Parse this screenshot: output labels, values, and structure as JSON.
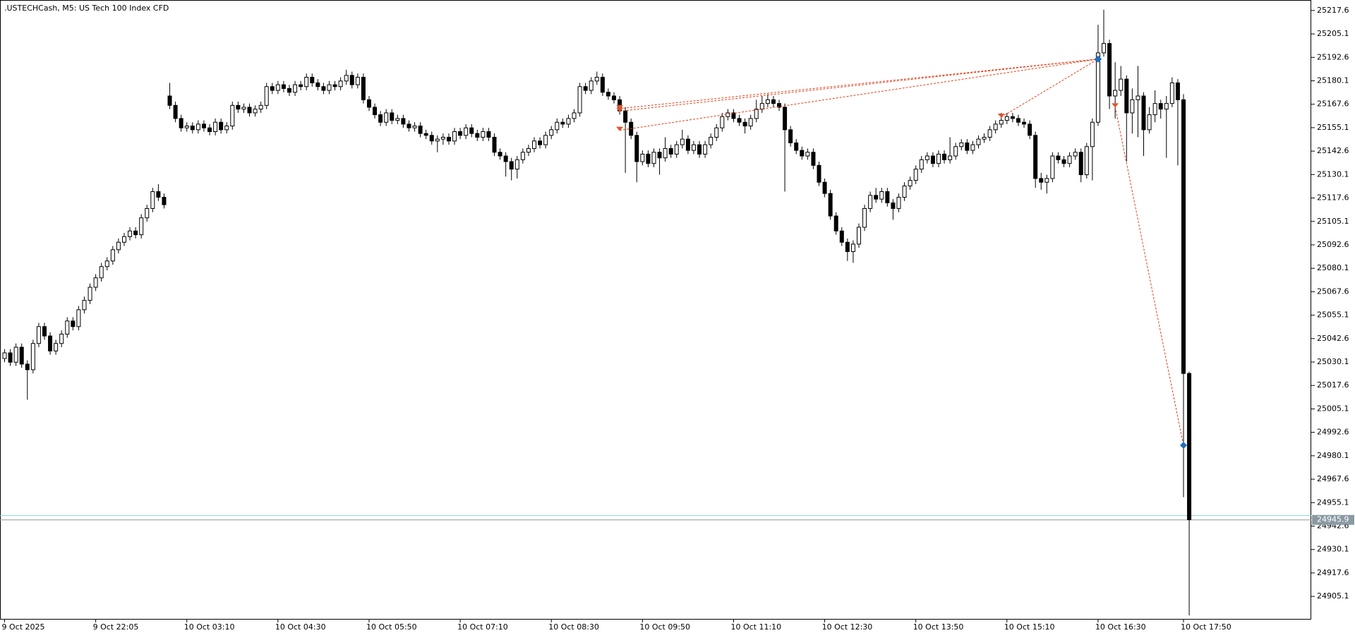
{
  "chart_data": {
    "type": "candlestick",
    "title": ".USTECHCash, M5:  US Tech 100 Index CFD",
    "ylim": [
      24893.1,
      25223.2
    ],
    "yticks": [
      {
        "value": 25217.6,
        "label": "25217.6"
      },
      25205.1,
      25192.6,
      25180.1,
      25167.6,
      25155.1,
      25142.6,
      25130.1,
      25117.6,
      25105.1,
      25092.6,
      25080.1,
      25067.6,
      25055.1,
      25042.6,
      25030.1,
      25017.6,
      25005.1,
      24992.6,
      24980.1,
      24967.6,
      24955.1,
      24942.6,
      24930.1,
      24917.6,
      24905.1
    ],
    "xticks": [
      {
        "value": 0,
        "label": "9 Oct 2025"
      },
      {
        "value": 16,
        "label": "9 Oct 22:05"
      },
      {
        "value": 32,
        "label": "10 Oct 03:10"
      },
      {
        "value": 48,
        "label": "10 Oct 04:30"
      },
      {
        "value": 64,
        "label": "10 Oct 05:50"
      },
      {
        "value": 80,
        "label": "10 Oct 07:10"
      },
      {
        "value": 96,
        "label": "10 Oct 08:30"
      },
      {
        "value": 112,
        "label": "10 Oct 09:50"
      },
      {
        "value": 128,
        "label": "10 Oct 11:10"
      },
      {
        "value": 144,
        "label": "10 Oct 12:30"
      },
      {
        "value": 160,
        "label": "10 Oct 13:50"
      },
      {
        "value": 176,
        "label": "10 Oct 15:10"
      },
      {
        "value": 192,
        "label": "10 Oct 16:30"
      },
      {
        "value": 207,
        "label": "10 Oct 17:50"
      }
    ],
    "bid": 24945.9,
    "ask": 24948.2,
    "bull_color": "#ffffff",
    "bear_color": "#000000",
    "bid_color": "#8a9aa3",
    "ask_color": "#7fd8d8",
    "sell_color": "#e0542a",
    "buy_color": "#1f6fc0",
    "trade_line_color": "#e0401a",
    "trades": [
      {
        "open_index": 108,
        "open_price": 25165.3,
        "close_index": 192,
        "close_price": 25191.7
      },
      {
        "open_index": 108,
        "open_price": 25163.9,
        "close_index": 192,
        "close_price": 25191.7
      },
      {
        "open_index": 108,
        "open_price": 25153.7,
        "close_index": 192,
        "close_price": 25191.7
      },
      {
        "open_index": 175,
        "open_price": 25160.7,
        "close_index": 192,
        "close_price": 25191.7
      },
      {
        "open_index": 195,
        "open_price": 25166.2,
        "close_index": 207,
        "close_price": 24985.7
      }
    ],
    "candles": [
      [
        25032,
        25037,
        25030,
        25035
      ],
      [
        25035,
        25037,
        25028,
        25030
      ],
      [
        25030,
        25040,
        25028,
        25038
      ],
      [
        25038,
        25040,
        25027,
        25029
      ],
      [
        25029,
        25031,
        25010,
        25026
      ],
      [
        25026,
        25042,
        25024,
        25040
      ],
      [
        25040,
        25051,
        25038,
        25049
      ],
      [
        25049,
        25051,
        25042,
        25044
      ],
      [
        25044,
        25046,
        25034,
        25036
      ],
      [
        25036,
        25042,
        25034,
        25040
      ],
      [
        25040,
        25047,
        25038,
        25045
      ],
      [
        25045,
        25054,
        25043,
        25052
      ],
      [
        25052,
        25054,
        25047,
        25049
      ],
      [
        25049,
        25060,
        25047,
        25058
      ],
      [
        25058,
        25065,
        25056,
        25063
      ],
      [
        25063,
        25072,
        25061,
        25070
      ],
      [
        25070,
        25077,
        25068,
        25075
      ],
      [
        25075,
        25083,
        25073,
        25081
      ],
      [
        25081,
        25086,
        25079,
        25084
      ],
      [
        25084,
        25092,
        25082,
        25090
      ],
      [
        25090,
        25096,
        25088,
        25094
      ],
      [
        25094,
        25099,
        25092,
        25097
      ],
      [
        25097,
        25102,
        25095,
        25100
      ],
      [
        25100,
        25102,
        25096,
        25098
      ],
      [
        25098,
        25109,
        25096,
        25107
      ],
      [
        25107,
        25114,
        25105,
        25112
      ],
      [
        25112,
        25123,
        25110,
        25121
      ],
      [
        25121,
        25125,
        25116,
        25118
      ],
      [
        25118,
        25120,
        25112,
        25114
      ],
      [
        25172,
        25179,
        25165,
        25167
      ],
      [
        25167,
        25169,
        25158,
        25160
      ],
      [
        25160,
        25162,
        25153,
        25155
      ],
      [
        25155,
        25158,
        25153,
        25156
      ],
      [
        25156,
        25158,
        25152,
        25154
      ],
      [
        25154,
        25159,
        25152,
        25157
      ],
      [
        25157,
        25159,
        25153,
        25155
      ],
      [
        25155,
        25157,
        25151,
        25153
      ],
      [
        25153,
        25160,
        25151,
        25158
      ],
      [
        25158,
        25160,
        25152,
        25154
      ],
      [
        25154,
        25158,
        25152,
        25156
      ],
      [
        25156,
        25169,
        25154,
        25167
      ],
      [
        25167,
        25169,
        25163,
        25165
      ],
      [
        25165,
        25168,
        25163,
        25166
      ],
      [
        25166,
        25168,
        25161,
        25163
      ],
      [
        25163,
        25167,
        25161,
        25165
      ],
      [
        25165,
        25169,
        25163,
        25167
      ],
      [
        25167,
        25179,
        25165,
        25177
      ],
      [
        25177,
        25179,
        25173,
        25175
      ],
      [
        25175,
        25180,
        25173,
        25178
      ],
      [
        25178,
        25180,
        25174,
        25176
      ],
      [
        25176,
        25178,
        25172,
        25174
      ],
      [
        25174,
        25180,
        25172,
        25178
      ],
      [
        25178,
        25180,
        25175,
        25177
      ],
      [
        25177,
        25184,
        25175,
        25182
      ],
      [
        25182,
        25184,
        25177,
        25179
      ],
      [
        25179,
        25181,
        25175,
        25177
      ],
      [
        25177,
        25179,
        25173,
        25175
      ],
      [
        25175,
        25180,
        25173,
        25178
      ],
      [
        25178,
        25180,
        25175,
        25177
      ],
      [
        25177,
        25182,
        25175,
        25180
      ],
      [
        25180,
        25186,
        25178,
        25183
      ],
      [
        25183,
        25185,
        25176,
        25178
      ],
      [
        25178,
        25184,
        25176,
        25182
      ],
      [
        25182,
        25184,
        25168,
        25170
      ],
      [
        25170,
        25172,
        25164,
        25166
      ],
      [
        25166,
        25168,
        25160,
        25162
      ],
      [
        25162,
        25164,
        25156,
        25158
      ],
      [
        25158,
        25165,
        25156,
        25163
      ],
      [
        25163,
        25165,
        25157,
        25159
      ],
      [
        25159,
        25162,
        25157,
        25160
      ],
      [
        25160,
        25162,
        25155,
        25157
      ],
      [
        25157,
        25159,
        25153,
        25155
      ],
      [
        25155,
        25158,
        25153,
        25156
      ],
      [
        25156,
        25158,
        25150,
        25152
      ],
      [
        25152,
        25154,
        25149,
        25151
      ],
      [
        25151,
        25153,
        25146,
        25148
      ],
      [
        25148,
        25151,
        25142,
        25149
      ],
      [
        25149,
        25152,
        25146,
        25150
      ],
      [
        25150,
        25152,
        25146,
        25148
      ],
      [
        25148,
        25155,
        25146,
        25153
      ],
      [
        25153,
        25155,
        25149,
        25151
      ],
      [
        25151,
        25157,
        25149,
        25155
      ],
      [
        25155,
        25157,
        25150,
        25152
      ],
      [
        25152,
        25154,
        25148,
        25150
      ],
      [
        25150,
        25155,
        25148,
        25153
      ],
      [
        25153,
        25155,
        25148,
        25150
      ],
      [
        25150,
        25152,
        25140,
        25142
      ],
      [
        25142,
        25144,
        25138,
        25140
      ],
      [
        25140,
        25142,
        25129,
        25137
      ],
      [
        25137,
        25139,
        25127,
        25133
      ],
      [
        25133,
        25140,
        25128,
        25138
      ],
      [
        25138,
        25144,
        25136,
        25142
      ],
      [
        25142,
        25146,
        25140,
        25144
      ],
      [
        25144,
        25150,
        25142,
        25148
      ],
      [
        25148,
        25150,
        25144,
        25146
      ],
      [
        25146,
        25153,
        25144,
        25151
      ],
      [
        25151,
        25156,
        25149,
        25154
      ],
      [
        25154,
        25160,
        25152,
        25158
      ],
      [
        25158,
        25160,
        25155,
        25157
      ],
      [
        25157,
        25162,
        25155,
        25160
      ],
      [
        25160,
        25165,
        25158,
        25163
      ],
      [
        25163,
        25179,
        25161,
        25177
      ],
      [
        25177,
        25179,
        25173,
        25175
      ],
      [
        25175,
        25182,
        25173,
        25180
      ],
      [
        25180,
        25185,
        25178,
        25182
      ],
      [
        25182,
        25184,
        25172,
        25174
      ],
      [
        25174,
        25176,
        25170,
        25172
      ],
      [
        25172,
        25174,
        25168,
        25170
      ],
      [
        25170,
        25172,
        25162,
        25164
      ],
      [
        25164,
        25166,
        25131,
        25158
      ],
      [
        25158,
        25160,
        25149,
        25151
      ],
      [
        25151,
        25153,
        25126,
        25137
      ],
      [
        25137,
        25143,
        25135,
        25141
      ],
      [
        25141,
        25143,
        25134,
        25136
      ],
      [
        25136,
        25144,
        25134,
        25142
      ],
      [
        25142,
        25144,
        25130,
        25139
      ],
      [
        25139,
        25150,
        25137,
        25144
      ],
      [
        25144,
        25146,
        25139,
        25141
      ],
      [
        25141,
        25148,
        25139,
        25146
      ],
      [
        25146,
        25154,
        25144,
        25149
      ],
      [
        25149,
        25151,
        25141,
        25143
      ],
      [
        25143,
        25148,
        25141,
        25146
      ],
      [
        25146,
        25148,
        25139,
        25141
      ],
      [
        25141,
        25148,
        25139,
        25146
      ],
      [
        25146,
        25152,
        25144,
        25150
      ],
      [
        25150,
        25157,
        25148,
        25155
      ],
      [
        25155,
        25163,
        25153,
        25161
      ],
      [
        25161,
        25165,
        25159,
        25163
      ],
      [
        25163,
        25165,
        25158,
        25160
      ],
      [
        25160,
        25162,
        25156,
        25158
      ],
      [
        25158,
        25160,
        25152,
        25156
      ],
      [
        25156,
        25162,
        25154,
        25160
      ],
      [
        25160,
        25170,
        25158,
        25165
      ],
      [
        25165,
        25172,
        25163,
        25168
      ],
      [
        25168,
        25173,
        25166,
        25170
      ],
      [
        25170,
        25172,
        25166,
        25168
      ],
      [
        25168,
        25170,
        25164,
        25166
      ],
      [
        25166,
        25168,
        25121,
        25154
      ],
      [
        25154,
        25156,
        25145,
        25147
      ],
      [
        25147,
        25149,
        25141,
        25143
      ],
      [
        25143,
        25145,
        25138,
        25140
      ],
      [
        25140,
        25144,
        25138,
        25142
      ],
      [
        25142,
        25144,
        25133,
        25135
      ],
      [
        25135,
        25137,
        25124,
        25126
      ],
      [
        25126,
        25128,
        25118,
        25120
      ],
      [
        25120,
        25122,
        25106,
        25108
      ],
      [
        25108,
        25110,
        25098,
        25100
      ],
      [
        25100,
        25102,
        25092,
        25094
      ],
      [
        25094,
        25096,
        25084,
        25089
      ],
      [
        25089,
        25095,
        25083,
        25093
      ],
      [
        25093,
        25104,
        25091,
        25102
      ],
      [
        25102,
        25114,
        25100,
        25112
      ],
      [
        25112,
        25121,
        25110,
        25119
      ],
      [
        25119,
        25123,
        25115,
        25117
      ],
      [
        25117,
        25123,
        25115,
        25121
      ],
      [
        25121,
        25123,
        25113,
        25115
      ],
      [
        25115,
        25117,
        25106,
        25112
      ],
      [
        25112,
        25120,
        25110,
        25118
      ],
      [
        25118,
        25126,
        25116,
        25124
      ],
      [
        25124,
        25129,
        25122,
        25127
      ],
      [
        25127,
        25135,
        25125,
        25133
      ],
      [
        25133,
        25140,
        25131,
        25138
      ],
      [
        25138,
        25142,
        25136,
        25140
      ],
      [
        25140,
        25142,
        25134,
        25136
      ],
      [
        25136,
        25143,
        25134,
        25141
      ],
      [
        25141,
        25143,
        25136,
        25138
      ],
      [
        25138,
        25150,
        25136,
        25140
      ],
      [
        25140,
        25147,
        25138,
        25145
      ],
      [
        25145,
        25149,
        25143,
        25147
      ],
      [
        25147,
        25149,
        25141,
        25143
      ],
      [
        25143,
        25148,
        25141,
        25146
      ],
      [
        25146,
        25151,
        25144,
        25149
      ],
      [
        25149,
        25152,
        25147,
        25150
      ],
      [
        25150,
        25156,
        25148,
        25154
      ],
      [
        25154,
        25159,
        25152,
        25157
      ],
      [
        25157,
        25163,
        25155,
        25159
      ],
      [
        25159,
        25163,
        25157,
        25161
      ],
      [
        25161,
        25163,
        25158,
        25160
      ],
      [
        25160,
        25162,
        25156,
        25158
      ],
      [
        25158,
        25160,
        25155,
        25157
      ],
      [
        25157,
        25159,
        25149,
        25151
      ],
      [
        25151,
        25153,
        25123,
        25128
      ],
      [
        25128,
        25131,
        25122,
        25126
      ],
      [
        25126,
        25130,
        25120,
        25128
      ],
      [
        25128,
        25142,
        25126,
        25140
      ],
      [
        25140,
        25142,
        25136,
        25138
      ],
      [
        25138,
        25140,
        25134,
        25136
      ],
      [
        25136,
        25142,
        25134,
        25140
      ],
      [
        25140,
        25144,
        25138,
        25142
      ],
      [
        25142,
        25144,
        25126,
        25130
      ],
      [
        25130,
        25147,
        25128,
        25145
      ],
      [
        25145,
        25160,
        25127,
        25158
      ],
      [
        25158,
        25210,
        25156,
        25195
      ],
      [
        25195,
        25218,
        25193,
        25200
      ],
      [
        25200,
        25202,
        25165,
        25172
      ],
      [
        25172,
        25190,
        25160,
        25175
      ],
      [
        25175,
        25188,
        25172,
        25181
      ],
      [
        25181,
        25183,
        25137,
        25163
      ],
      [
        25163,
        25176,
        25152,
        25170
      ],
      [
        25170,
        25188,
        25150,
        25172
      ],
      [
        25172,
        25174,
        25140,
        25154
      ],
      [
        25154,
        25166,
        25152,
        25162
      ],
      [
        25162,
        25175,
        25158,
        25168
      ],
      [
        25168,
        25170,
        25160,
        25165
      ],
      [
        25165,
        25172,
        25139,
        25168
      ],
      [
        25168,
        25182,
        25166,
        25179
      ],
      [
        25179,
        25181,
        25135,
        25170
      ],
      [
        25170,
        25173,
        24958,
        25024
      ],
      [
        25024,
        25025,
        24895,
        24946
      ]
    ]
  }
}
